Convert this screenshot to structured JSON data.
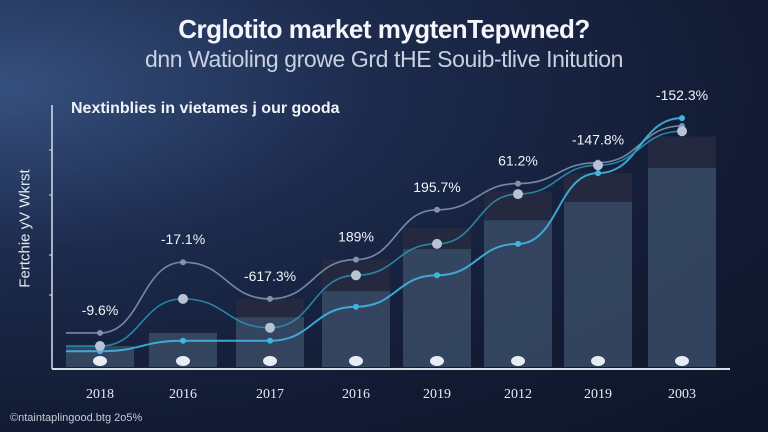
{
  "chart_data": {
    "type": "bar",
    "title": "Crglotito market mygtenTepwned?",
    "subtitle": "dnn Watioling growe Grd tHE Souib-tlive Initution",
    "annotation": "Nextinblies in vietames ϳ our gooda",
    "ylabel": "Fertchie yV Wkrst",
    "xlabel": "",
    "footer": "©ntaintaplingood.btg 2o5%",
    "categories": [
      "2018",
      "2016",
      "2017",
      "2016",
      "2019",
      "2012",
      "2019",
      "2003"
    ],
    "ylim": [
      0,
      100
    ],
    "y_tick_labels": false,
    "grid": false,
    "bars": {
      "values": [
        8,
        13,
        19,
        29,
        45,
        56,
        63,
        76
      ],
      "upper_values": [
        8,
        13,
        26,
        41,
        53,
        67,
        74,
        88
      ]
    },
    "series": [
      {
        "values": [
          13,
          40,
          26,
          41,
          60,
          70,
          78,
          92
        ],
        "color": "#7f93b0"
      },
      {
        "values": [
          6,
          10,
          10,
          23,
          35,
          47,
          74,
          95
        ],
        "color": "#3fb6e0"
      },
      {
        "values": [
          8,
          26,
          15,
          35,
          47,
          66,
          77,
          90
        ],
        "color": "#2a8fb0"
      }
    ],
    "data_labels": [
      "-9.6%",
      "-17.1%",
      "-617.3%",
      "189%",
      "195.7%",
      "61.2%",
      "-147.8%",
      "-152.3%"
    ],
    "colors": {
      "bar": "#3a4b66",
      "bar_upper": "#262a40",
      "axis": "#d8dde8"
    }
  }
}
